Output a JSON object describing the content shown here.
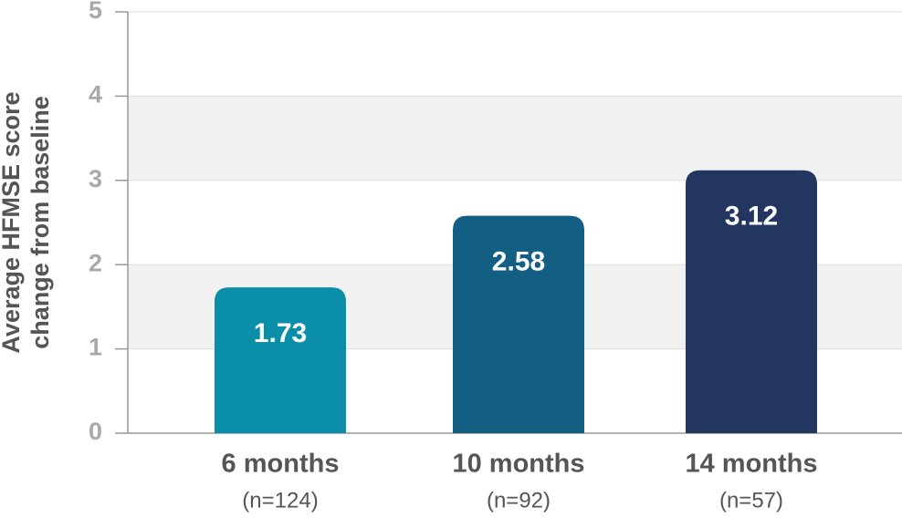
{
  "chart_data": {
    "type": "bar",
    "y_label": [
      "Average HFMSE score",
      "change from baseline"
    ],
    "categories": [
      "6 months",
      "10 months",
      "14 months"
    ],
    "sample_sizes": [
      "(n=124)",
      "(n=92)",
      "(n=57)"
    ],
    "values": [
      1.73,
      2.58,
      3.12
    ],
    "colors": [
      "#0b8fa8",
      "#135e83",
      "#22365f"
    ],
    "ylim": [
      0,
      5
    ],
    "yticks": [
      0,
      1,
      2,
      3,
      4,
      5
    ],
    "grid": true,
    "banded": true
  }
}
